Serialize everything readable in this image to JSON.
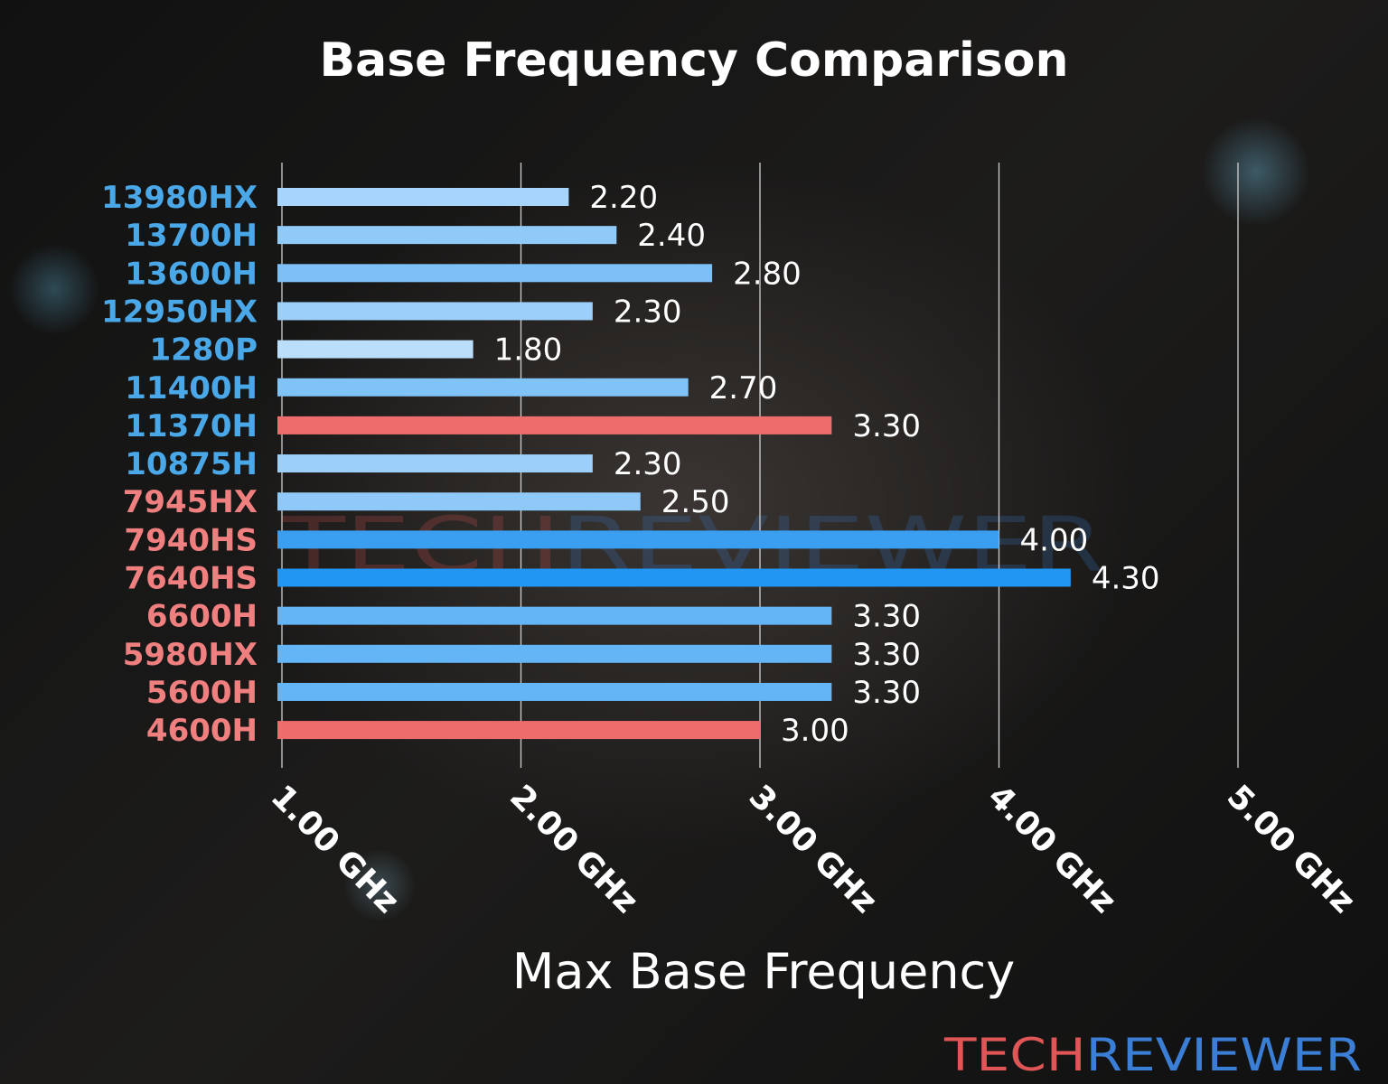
{
  "chart_data": {
    "type": "bar",
    "orientation": "horizontal",
    "title": "Base Frequency Comparison",
    "xlabel": "Max Base Frequency",
    "ylabel": "",
    "xlim": [
      1.0,
      5.0
    ],
    "xticks": [
      "1.00 GHz",
      "2.00 GHz",
      "3.00 GHz",
      "4.00 GHz",
      "5.00 GHz"
    ],
    "grid": "vertical",
    "categories": [
      "13980HX",
      "13700H",
      "13600H",
      "12950HX",
      "1280P",
      "11400H",
      "11370H",
      "10875H",
      "7945HX",
      "7940HS",
      "7640HS",
      "6600H",
      "5980HX",
      "5600H",
      "4600H"
    ],
    "values": [
      2.2,
      2.4,
      2.8,
      2.3,
      1.8,
      2.7,
      3.3,
      2.3,
      2.5,
      4.0,
      4.3,
      3.3,
      3.3,
      3.3,
      3.0
    ],
    "value_labels": [
      "2.20",
      "2.40",
      "2.80",
      "2.30",
      "1.80",
      "2.70",
      "3.30",
      "2.30",
      "2.50",
      "4.00",
      "4.30",
      "3.30",
      "3.30",
      "3.30",
      "3.00"
    ],
    "bar_colors": [
      "#a6d4fa",
      "#90caf9",
      "#7cc0f7",
      "#9ccffa",
      "#bbdefb",
      "#80c3f7",
      "#ef6c6c",
      "#9ccffa",
      "#8ec9f9",
      "#3a9ff0",
      "#2196f3",
      "#64b5f6",
      "#64b5f6",
      "#64b5f6",
      "#ef6c6c"
    ],
    "label_colors": [
      "#4aa8e8",
      "#4aa8e8",
      "#4aa8e8",
      "#4aa8e8",
      "#4aa8e8",
      "#4aa8e8",
      "#4aa8e8",
      "#4aa8e8",
      "#f08080",
      "#f08080",
      "#f08080",
      "#f08080",
      "#f08080",
      "#f08080",
      "#f08080"
    ]
  },
  "watermark": {
    "part1": "TECH",
    "part2": "REVIEWER",
    "color1": "#e05555",
    "color2": "#3a7fd5"
  }
}
